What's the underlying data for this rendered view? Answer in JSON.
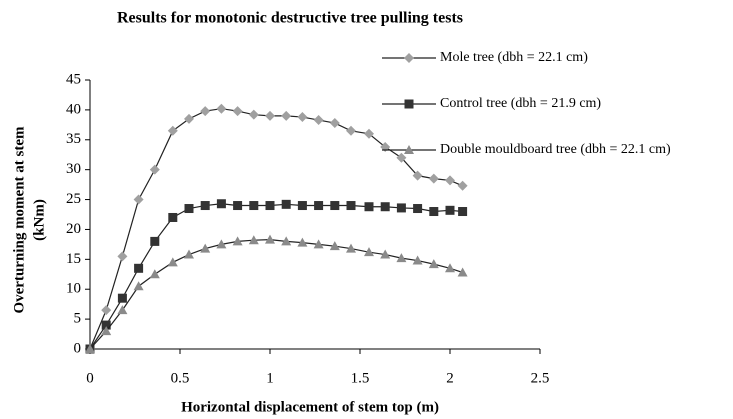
{
  "chart_data": {
    "type": "line",
    "title": "Results for monotonic destructive tree pulling tests",
    "xlabel": "Horizontal displacement of stem top (m)",
    "ylabel": [
      "Overturning moment at stem",
      "(kNm)"
    ],
    "x": [
      0,
      0.09,
      0.18,
      0.27,
      0.36,
      0.46,
      0.55,
      0.64,
      0.73,
      0.82,
      0.91,
      1.0,
      1.09,
      1.18,
      1.27,
      1.36,
      1.45,
      1.55,
      1.64,
      1.73,
      1.82,
      1.91,
      2.0,
      2.07
    ],
    "series": [
      {
        "name": "Mole tree (dbh = 22.1 cm)",
        "color": "#a0a0a0",
        "marker": "diamond",
        "values": [
          0,
          6.5,
          15.5,
          25,
          30,
          36.5,
          38.5,
          39.8,
          40.2,
          39.8,
          39.2,
          39,
          39,
          38.8,
          38.3,
          37.8,
          36.5,
          36,
          33.8,
          32,
          29,
          28.5,
          28.2,
          27.3
        ]
      },
      {
        "name": "Control tree (dbh = 21.9 cm)",
        "color": "#333333",
        "marker": "square",
        "values": [
          0,
          4,
          8.5,
          13.5,
          18,
          22,
          23.5,
          24,
          24.3,
          24,
          24,
          24,
          24.2,
          24,
          24,
          24,
          24,
          23.8,
          23.8,
          23.6,
          23.5,
          23,
          23.2,
          23
        ]
      },
      {
        "name": "Double mouldboard tree (dbh = 22.1 cm)",
        "color": "#8a8a8a",
        "marker": "triangle",
        "values": [
          0,
          3,
          6.5,
          10.5,
          12.5,
          14.5,
          15.8,
          16.8,
          17.5,
          18,
          18.2,
          18.3,
          18,
          17.8,
          17.5,
          17.2,
          16.8,
          16.2,
          15.8,
          15.2,
          14.8,
          14.2,
          13.5,
          12.8
        ]
      }
    ],
    "xlim": [
      0,
      2.5
    ],
    "xticks": [
      0,
      0.5,
      1,
      1.5,
      2,
      2.5
    ],
    "ylim": [
      0,
      45
    ],
    "yticks": [
      0,
      5,
      10,
      15,
      20,
      25,
      30,
      35,
      40,
      45
    ],
    "legend": "right"
  }
}
